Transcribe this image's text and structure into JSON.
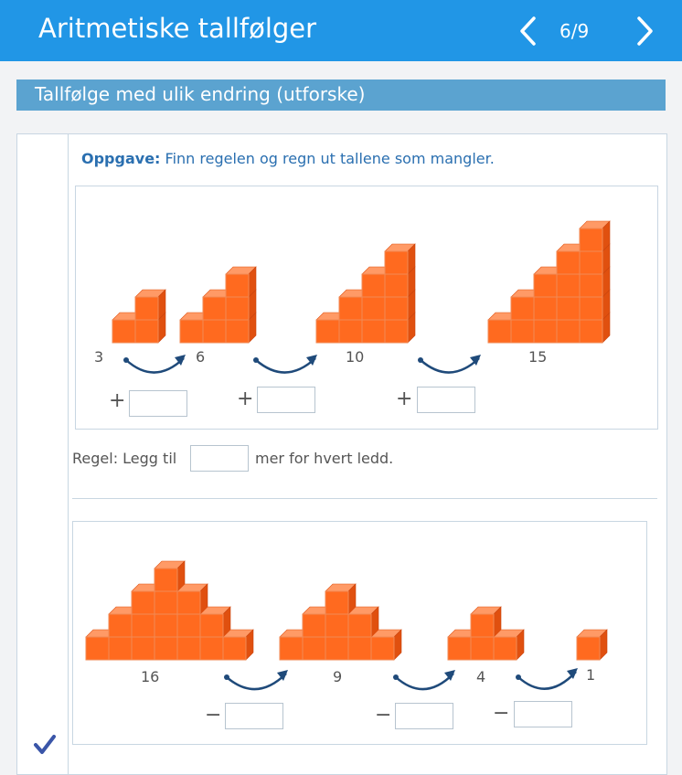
{
  "header": {
    "title": "Aritmetiske tallfølger",
    "page": "6/9"
  },
  "section": {
    "title": "Tallfølge med ulik endring (utforske)"
  },
  "task": {
    "label": "Oppgave:",
    "text": "Finn regelen og regn ut tallene som mangler."
  },
  "figure1": {
    "numbers": [
      "3",
      "6",
      "10",
      "15"
    ],
    "operator": "+"
  },
  "rule": {
    "prefix": "Regel: Legg til",
    "suffix": "mer for hvert ledd."
  },
  "figure2": {
    "numbers": [
      "16",
      "9",
      "4",
      "1"
    ],
    "operator": "−"
  },
  "colors": {
    "header": "#2196e6",
    "section": "#5ba3d0",
    "cube": "#ff6a1f",
    "arrow": "#1f4a7a"
  }
}
